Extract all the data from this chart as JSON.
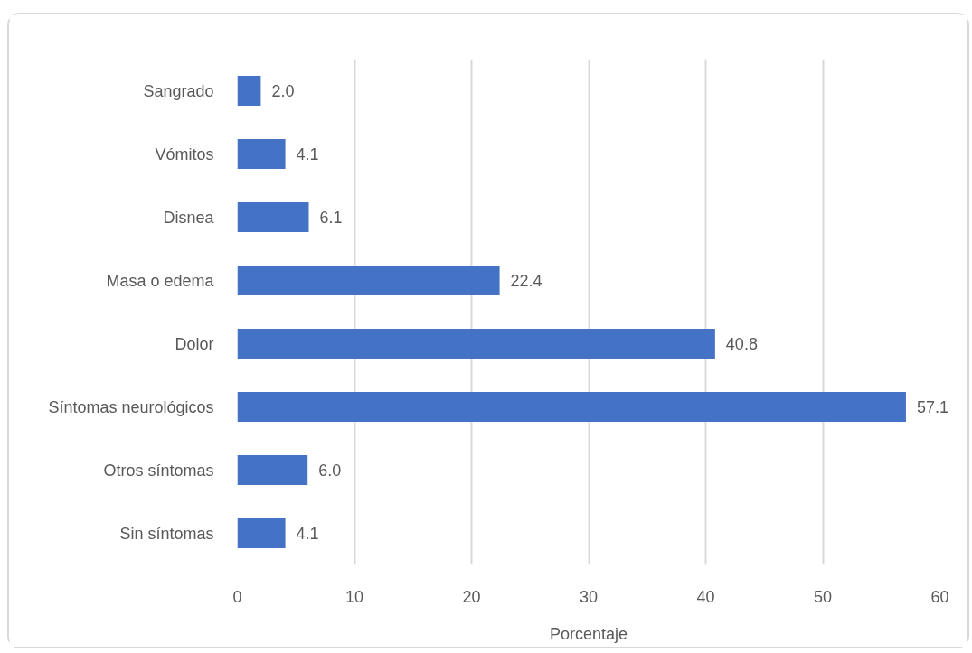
{
  "chart_data": {
    "type": "bar",
    "orientation": "horizontal",
    "categories": [
      "Sangrado",
      "Vómitos",
      "Disnea",
      "Masa o edema",
      "Dolor",
      "Síntomas neurológicos",
      "Otros síntomas",
      "Sin síntomas"
    ],
    "values": [
      2.0,
      4.1,
      6.1,
      22.4,
      40.8,
      57.1,
      6.0,
      4.1
    ],
    "color": "#4472c4",
    "value_labels": [
      "2.0",
      "4.1",
      "6.1",
      "22.4",
      "40.8",
      "57.1",
      "6.0",
      "4.1"
    ],
    "xlabel": "Porcentaje",
    "xlim": [
      0,
      60
    ],
    "xticks": [
      0,
      10,
      20,
      30,
      40,
      50,
      60
    ],
    "grid": "x"
  }
}
